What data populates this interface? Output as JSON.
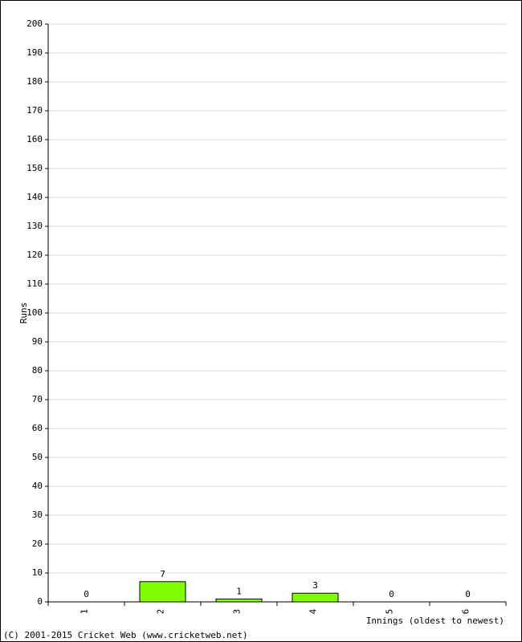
{
  "chart_data": {
    "type": "bar",
    "y_label": "Runs",
    "x_label": "Innings (oldest to newest)",
    "categories": [
      "1",
      "2",
      "3",
      "4",
      "5",
      "6"
    ],
    "values": [
      0,
      7,
      1,
      3,
      0,
      0
    ],
    "color": "#80ff00",
    "ylim": [
      0,
      200
    ],
    "yticks": [
      0,
      10,
      20,
      30,
      40,
      50,
      60,
      70,
      80,
      90,
      100,
      110,
      120,
      130,
      140,
      150,
      160,
      170,
      180,
      190,
      200
    ],
    "grid": true,
    "footer": "(C) 2001-2015 Cricket Web (www.cricketweb.net)"
  }
}
